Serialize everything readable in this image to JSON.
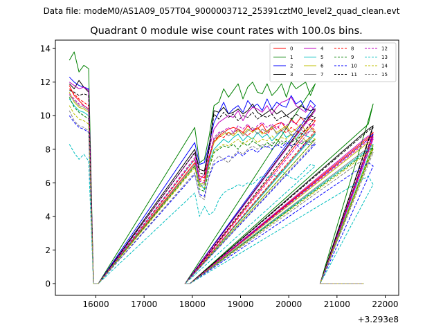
{
  "figure": {
    "suptitle": "Data file: modeM0/AS1A09_057T04_9000003712_25391cztM0_level2_quad_clean.evt"
  },
  "chart_data": {
    "type": "line",
    "title": "Quadrant 0 module wise count rates with 100.0s bins.",
    "xlabel": "",
    "ylabel": "",
    "x_offset_label": "+3.293e8",
    "xlim": [
      15160,
      22280
    ],
    "ylim": [
      -0.7,
      14.5
    ],
    "x_ticks": [
      16000,
      17000,
      18000,
      19000,
      20000,
      21000,
      22000
    ],
    "x_tick_labels": [
      "16000",
      "17000",
      "18000",
      "19000",
      "20000",
      "21000",
      "22000"
    ],
    "y_ticks": [
      0,
      2,
      4,
      6,
      8,
      10,
      12,
      14
    ],
    "y_tick_labels": [
      "0",
      "2",
      "4",
      "6",
      "8",
      "10",
      "12",
      "14"
    ],
    "grid": false,
    "legend": {
      "position": "top-right",
      "columns": 4
    },
    "segments": [
      {
        "x_start": 15450,
        "x_end": 15850,
        "step": 100
      },
      {
        "x_start": 18050,
        "x_end": 20550,
        "step": 100
      },
      {
        "x_start": 21650,
        "x_end": 21750,
        "step": 100
      }
    ],
    "gaps": [
      {
        "x_start": 15950,
        "x_end": 16050,
        "value": 0
      },
      {
        "x_start": 17850,
        "x_end": 17950,
        "value": 0
      },
      {
        "x_start": 20650,
        "x_end": 21550,
        "value": 0
      }
    ],
    "series": [
      {
        "name": "0",
        "color": "#ff0000",
        "dash": "solid",
        "levels": [
          11.8,
          6.4,
          8.7
        ],
        "values": [
          [
            11.8,
            11.2,
            10.9,
            10.6,
            10.4
          ],
          [
            7.2,
            6.4,
            6.3,
            7.6,
            8.4,
            8.8,
            9.0,
            9.2,
            9.3,
            9.2,
            9.0,
            9.4,
            9.1,
            9.2,
            9.5,
            9.0,
            9.3,
            9.5,
            9.6,
            9.2,
            9.8,
            9.5,
            9.9,
            9.6,
            9.8,
            9.7
          ],
          [
            8.7,
            9.0
          ]
        ]
      },
      {
        "name": "1",
        "color": "#008000",
        "dash": "solid",
        "levels": [
          13.3,
          7.0,
          9.5
        ],
        "values": [
          [
            13.3,
            13.8,
            12.6,
            13.0,
            12.8
          ],
          [
            9.3,
            7.2,
            7.4,
            8.8,
            10.6,
            10.8,
            11.6,
            11.1,
            11.5,
            11.9,
            11.0,
            11.7,
            12.0,
            11.4,
            11.3,
            11.9,
            11.2,
            11.5,
            11.9,
            11.1,
            12.0,
            11.6,
            11.8,
            12.0,
            11.2,
            11.9
          ],
          [
            9.5,
            10.7
          ]
        ]
      },
      {
        "name": "2",
        "color": "#0000ff",
        "dash": "solid",
        "levels": [
          12.3,
          7.0,
          8.6
        ],
        "values": [
          [
            12.3,
            12.0,
            11.8,
            11.7,
            11.6
          ],
          [
            8.4,
            7.1,
            7.2,
            8.3,
            9.6,
            10.2,
            10.8,
            10.1,
            10.4,
            10.6,
            10.2,
            10.9,
            10.5,
            10.7,
            10.3,
            11.0,
            10.4,
            10.8,
            10.6,
            10.5,
            11.2,
            10.7,
            10.9,
            10.3,
            10.9,
            10.6
          ],
          [
            8.6,
            8.9
          ]
        ]
      },
      {
        "name": "3",
        "color": "#000000",
        "dash": "solid",
        "levels": [
          11.9,
          6.8,
          9.2
        ],
        "values": [
          [
            11.9,
            11.6,
            12.1,
            11.7,
            11.4
          ],
          [
            8.0,
            6.8,
            6.7,
            8.2,
            10.3,
            10.2,
            10.5,
            10.1,
            10.2,
            10.4,
            10.1,
            10.3,
            10.7,
            10.2,
            10.0,
            10.2,
            10.4,
            10.1,
            10.3,
            10.0,
            10.2,
            10.4,
            10.6,
            10.4,
            10.3,
            10.4
          ],
          [
            9.2,
            9.4
          ]
        ]
      },
      {
        "name": "4",
        "color": "#bf00bf",
        "dash": "solid",
        "levels": [
          12.0,
          6.2,
          8.8
        ],
        "values": [
          [
            12.0,
            11.8,
            11.6,
            11.7,
            11.5
          ],
          [
            7.8,
            6.2,
            6.5,
            8.0,
            9.2,
            9.6,
            9.8,
            10.0,
            9.9,
            10.3,
            9.7,
            10.2,
            10.5,
            10.4,
            10.2,
            10.6,
            10.1,
            10.5,
            10.8,
            10.9,
            11.1,
            10.6,
            10.4,
            10.2,
            10.6,
            10.3
          ],
          [
            8.8,
            8.6
          ]
        ]
      },
      {
        "name": "5",
        "color": "#00bfbf",
        "dash": "solid",
        "levels": [
          11.0,
          6.0,
          8.0
        ],
        "values": [
          [
            11.0,
            10.6,
            10.3,
            10.2,
            10.0
          ],
          [
            7.4,
            6.0,
            5.6,
            7.2,
            8.0,
            8.3,
            8.6,
            8.4,
            8.7,
            8.9,
            8.5,
            8.8,
            8.6,
            9.0,
            8.7,
            8.9,
            8.5,
            8.8,
            9.1,
            8.7,
            8.9,
            8.6,
            9.0,
            8.8,
            8.7,
            8.9
          ],
          [
            8.0,
            8.3
          ]
        ]
      },
      {
        "name": "6",
        "color": "#bfbf00",
        "dash": "solid",
        "levels": [
          11.4,
          6.0,
          8.4
        ],
        "values": [
          [
            11.4,
            10.8,
            10.5,
            10.4,
            10.2
          ],
          [
            7.0,
            5.9,
            6.0,
            7.4,
            8.4,
            8.7,
            8.9,
            9.0,
            8.8,
            9.1,
            8.9,
            9.2,
            9.0,
            9.3,
            8.9,
            9.1,
            9.3,
            9.0,
            9.2,
            9.4,
            9.0,
            9.2,
            9.5,
            9.1,
            9.3,
            9.0
          ],
          [
            8.4,
            8.2
          ]
        ]
      },
      {
        "name": "7",
        "color": "#808080",
        "dash": "solid",
        "levels": [
          11.2,
          5.8,
          8.1
        ],
        "values": [
          [
            11.2,
            10.9,
            10.6,
            10.5,
            10.3
          ],
          [
            7.1,
            5.8,
            5.9,
            7.3,
            8.6,
            8.9,
            9.1,
            8.8,
            9.0,
            9.2,
            8.8,
            9.1,
            9.3,
            8.9,
            9.2,
            9.0,
            9.4,
            8.9,
            9.1,
            9.3,
            8.8,
            9.0,
            9.2,
            8.9,
            9.1,
            9.0
          ],
          [
            8.1,
            8.0
          ]
        ]
      },
      {
        "name": "8",
        "color": "#ff0000",
        "dash": "dashed",
        "levels": [
          11.6,
          6.2,
          8.6
        ],
        "values": [
          [
            11.6,
            11.3,
            11.0,
            10.8,
            10.6
          ],
          [
            7.4,
            6.2,
            6.1,
            7.5,
            8.5,
            8.8,
            8.7,
            9.0,
            8.9,
            9.2,
            9.0,
            8.8,
            9.1,
            9.3,
            9.0,
            8.9,
            9.2,
            9.4,
            9.1,
            9.0,
            9.3,
            9.1,
            8.9,
            9.2,
            9.4,
            9.1
          ],
          [
            8.6,
            8.8
          ]
        ]
      },
      {
        "name": "9",
        "color": "#008000",
        "dash": "dashed",
        "levels": [
          11.1,
          5.6,
          7.9
        ],
        "values": [
          [
            11.1,
            10.5,
            10.2,
            10.0,
            9.8
          ],
          [
            7.0,
            5.6,
            5.5,
            6.9,
            7.8,
            8.0,
            8.2,
            8.1,
            8.3,
            8.0,
            8.4,
            8.2,
            8.5,
            8.3,
            8.1,
            8.4,
            8.2,
            8.6,
            8.3,
            8.5,
            8.4,
            8.6,
            8.3,
            8.5,
            8.4,
            8.6
          ],
          [
            7.9,
            8.1
          ]
        ]
      },
      {
        "name": "10",
        "color": "#0000ff",
        "dash": "dashed",
        "levels": [
          10.0,
          5.3,
          7.2
        ],
        "values": [
          [
            10.0,
            9.6,
            9.3,
            9.2,
            9.0
          ],
          [
            6.5,
            5.3,
            5.2,
            6.4,
            7.1,
            7.3,
            7.4,
            7.6,
            7.5,
            7.8,
            7.6,
            7.9,
            8.0,
            7.8,
            8.1,
            8.2,
            8.0,
            8.3,
            8.1,
            8.4,
            8.2,
            8.3,
            8.0,
            8.4,
            8.2,
            8.3
          ],
          [
            7.2,
            7.0
          ]
        ]
      },
      {
        "name": "11",
        "color": "#000000",
        "dash": "dashed",
        "levels": [
          11.5,
          6.6,
          9.1
        ],
        "values": [
          [
            11.5,
            11.4,
            11.2,
            11.3,
            11.2
          ],
          [
            7.8,
            6.6,
            6.5,
            8.0,
            10.1,
            9.8,
            10.2,
            9.9,
            10.1,
            9.7,
            10.0,
            9.9,
            10.2,
            9.8,
            10.0,
            9.9,
            10.1,
            9.7,
            9.9,
            10.0,
            9.8,
            10.1,
            9.9,
            9.8,
            10.0,
            9.9
          ],
          [
            9.1,
            9.3
          ]
        ]
      },
      {
        "name": "12",
        "color": "#bf00bf",
        "dash": "dashed",
        "levels": [
          11.3,
          6.1,
          8.5
        ],
        "values": [
          [
            11.3,
            11.0,
            10.7,
            10.6,
            10.4
          ],
          [
            7.5,
            6.1,
            6.0,
            7.6,
            8.7,
            9.0,
            9.1,
            9.3,
            9.0,
            9.4,
            9.2,
            9.5,
            9.1,
            9.4,
            9.6,
            9.3,
            9.5,
            9.2,
            9.6,
            9.4,
            9.7,
            9.5,
            9.3,
            9.6,
            9.4,
            9.5
          ],
          [
            8.5,
            8.7
          ]
        ]
      },
      {
        "name": "13",
        "color": "#00bfbf",
        "dash": "dashed",
        "levels": [
          8.3,
          3.9,
          6.4
        ],
        "values": [
          [
            8.3,
            7.8,
            7.4,
            7.7,
            7.3
          ],
          [
            5.4,
            4.0,
            4.6,
            4.1,
            4.3,
            5.0,
            5.4,
            5.6,
            5.7,
            5.9,
            5.8,
            6.0,
            5.9,
            6.2,
            6.4,
            6.3,
            6.5,
            6.4,
            6.7,
            6.5,
            6.3,
            6.2,
            6.5,
            6.8,
            7.1,
            7.0
          ],
          [
            6.4,
            5.9
          ]
        ]
      },
      {
        "name": "14",
        "color": "#bfbf00",
        "dash": "dashed",
        "levels": [
          10.6,
          5.8,
          7.8
        ],
        "values": [
          [
            10.6,
            10.1,
            9.8,
            9.7,
            9.5
          ],
          [
            6.9,
            5.8,
            5.7,
            7.0,
            7.9,
            8.1,
            8.3,
            8.2,
            8.4,
            8.6,
            8.3,
            8.5,
            8.7,
            8.4,
            8.6,
            8.5,
            8.8,
            8.5,
            8.7,
            8.6,
            8.9,
            8.6,
            8.8,
            8.5,
            8.7,
            8.6
          ],
          [
            7.8,
            8.0
          ]
        ]
      },
      {
        "name": "15",
        "color": "#808080",
        "dash": "dashed",
        "levels": [
          10.3,
          5.2,
          7.6
        ],
        "values": [
          [
            10.3,
            9.7,
            9.4,
            9.3,
            9.1
          ],
          [
            6.6,
            5.2,
            5.0,
            6.5,
            7.3,
            7.6,
            7.4,
            7.2,
            7.6,
            7.9,
            7.7,
            8.0,
            8.2,
            8.0,
            8.3,
            8.1,
            8.4,
            8.2,
            8.5,
            8.3,
            8.2,
            8.4,
            8.6,
            8.3,
            8.5,
            8.4
          ],
          [
            7.6,
            7.8
          ]
        ]
      }
    ]
  }
}
